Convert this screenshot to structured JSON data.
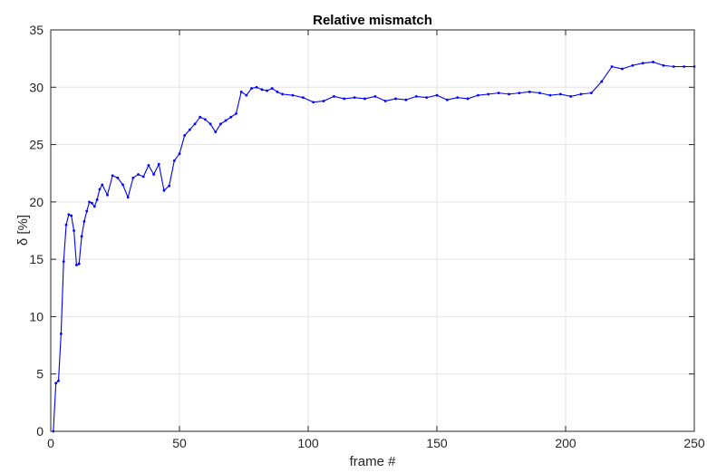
{
  "chart_data": {
    "type": "line",
    "title": "Relative mismatch",
    "xlabel": "frame #",
    "ylabel": "δ [%]",
    "xlim": [
      0,
      250
    ],
    "ylim": [
      0,
      35
    ],
    "xticks": [
      0,
      50,
      100,
      150,
      200,
      250
    ],
    "yticks": [
      0,
      5,
      10,
      15,
      20,
      25,
      30,
      35
    ],
    "grid": true,
    "legend": "none",
    "series": [
      {
        "color": "#0000ff",
        "marker": "dot",
        "x": [
          1,
          2,
          3,
          4,
          5,
          6,
          7,
          8,
          9,
          10,
          11,
          12,
          13,
          14,
          15,
          16,
          17,
          18,
          19,
          20,
          22,
          24,
          26,
          28,
          30,
          32,
          34,
          36,
          38,
          40,
          42,
          44,
          46,
          48,
          50,
          52,
          54,
          56,
          58,
          60,
          62,
          64,
          66,
          68,
          70,
          72,
          74,
          76,
          78,
          80,
          82,
          84,
          86,
          88,
          90,
          94,
          98,
          102,
          106,
          110,
          114,
          118,
          122,
          126,
          130,
          134,
          138,
          142,
          146,
          150,
          154,
          158,
          162,
          166,
          170,
          174,
          178,
          182,
          186,
          190,
          194,
          198,
          202,
          206,
          210,
          214,
          218,
          222,
          226,
          230,
          234,
          238,
          242,
          246,
          250
        ],
        "y": [
          0,
          4.2,
          4.4,
          8.5,
          14.8,
          18.0,
          18.9,
          18.8,
          17.5,
          14.5,
          14.6,
          17.0,
          18.3,
          19.2,
          20.0,
          19.9,
          19.6,
          20.2,
          21.1,
          21.5,
          20.6,
          22.3,
          22.1,
          21.5,
          20.4,
          22.1,
          22.4,
          22.2,
          23.2,
          22.4,
          23.3,
          21.0,
          21.4,
          23.6,
          24.2,
          25.8,
          26.3,
          26.8,
          27.4,
          27.2,
          26.8,
          26.1,
          26.8,
          27.1,
          27.4,
          27.7,
          29.6,
          29.3,
          29.9,
          30.0,
          29.8,
          29.7,
          29.9,
          29.6,
          29.4,
          29.3,
          29.1,
          28.7,
          28.8,
          29.2,
          29.0,
          29.1,
          29.0,
          29.2,
          28.8,
          29.0,
          28.9,
          29.2,
          29.1,
          29.3,
          28.9,
          29.1,
          29.0,
          29.3,
          29.4,
          29.5,
          29.4,
          29.5,
          29.6,
          29.5,
          29.3,
          29.4,
          29.2,
          29.4,
          29.5,
          30.5,
          31.8,
          31.6,
          31.9,
          32.1,
          32.2,
          31.9,
          31.8,
          31.8,
          31.8
        ]
      }
    ]
  }
}
